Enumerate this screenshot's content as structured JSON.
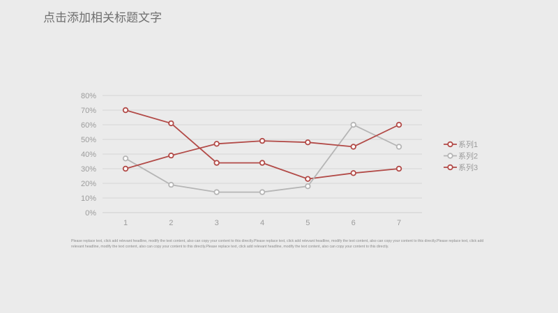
{
  "title": "点击添加相关标题文字",
  "body_text": "Please replace text, click add relevant headline, modify the text content, also can copy your content to this directly.Please replace text, click add relevant headline, modify the text content, also can copy your content to this directly.Please replace text, click add relevant headline, modify the text content, also can copy your content to this directly.Please replace text, click add relevant headline, modify the text content, also can copy your content to this directly.",
  "chart_data": {
    "type": "line",
    "title": "",
    "xlabel": "",
    "ylabel": "",
    "x": [
      "1",
      "2",
      "3",
      "4",
      "5",
      "6",
      "7"
    ],
    "yticks": [
      "0%",
      "10%",
      "20%",
      "30%",
      "40%",
      "50%",
      "60%",
      "70%",
      "80%"
    ],
    "ylim": [
      0,
      80
    ],
    "grid": true,
    "legend": "right",
    "series": [
      {
        "name": "系列1",
        "color": "#b24a47",
        "values": [
          70,
          61,
          34,
          34,
          23,
          27,
          30
        ]
      },
      {
        "name": "系列2",
        "color": "#b5b5b5",
        "values": [
          37,
          19,
          14,
          14,
          18,
          60,
          45
        ]
      },
      {
        "name": "系列3",
        "color": "#b24a47",
        "values": [
          30,
          39,
          47,
          49,
          48,
          45,
          60
        ]
      }
    ]
  }
}
